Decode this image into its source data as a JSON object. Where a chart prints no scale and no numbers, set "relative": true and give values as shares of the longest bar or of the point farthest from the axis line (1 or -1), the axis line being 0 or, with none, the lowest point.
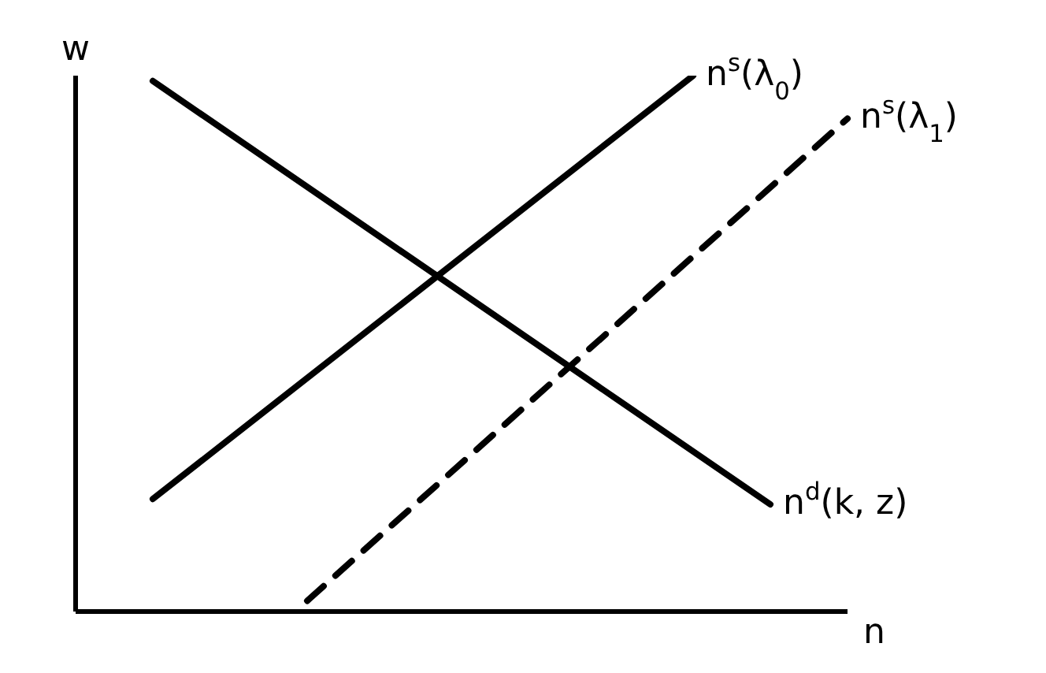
{
  "chart_data": {
    "type": "line",
    "relative": true,
    "xlabel": "n",
    "ylabel": "w",
    "categories": [
      null,
      null,
      null,
      null,
      null,
      null,
      null,
      null,
      null,
      null,
      null
    ],
    "series": [
      {
        "name": "n$^{s}$(λ$_{0}$)",
        "color": "#000000",
        "values": [
          null,
          0.21,
          null,
          null,
          null,
          null,
          null,
          null,
          1,
          null,
          null
        ]
      },
      {
        "name": "n$^{s}$(λ$_{1}$)",
        "color": "#000000",
        "line_style": "dashed",
        "values": [
          null,
          null,
          null,
          0.02,
          null,
          null,
          null,
          null,
          null,
          null,
          0.92
        ]
      },
      {
        "name": "n$^{d}$(k, z)",
        "color": "#000000",
        "values": [
          null,
          0.99,
          null,
          null,
          null,
          null,
          null,
          null,
          null,
          0.2,
          null
        ]
      }
    ],
    "legend": false,
    "grid": false,
    "marker": "none"
  }
}
